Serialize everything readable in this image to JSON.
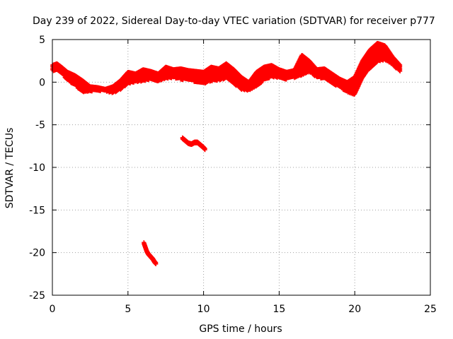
{
  "chart_data": {
    "type": "scatter",
    "title": "Day 239 of 2022, Sidereal Day-to-day VTEC variation (SDTVAR) for receiver p777",
    "xlabel": "GPS time / hours",
    "ylabel": "SDTVAR / TECUs",
    "xlim": [
      0,
      25
    ],
    "ylim": [
      -25,
      5
    ],
    "xticks": [
      0,
      5,
      10,
      15,
      20,
      25
    ],
    "yticks": [
      -25,
      -20,
      -15,
      -10,
      -5,
      0,
      5
    ],
    "grid": true,
    "marker": "+",
    "colors": {
      "series": "#ff0000",
      "grid": "#a0a0a0",
      "axis": "#000000"
    },
    "series": [
      {
        "name": "main band (upper edge)",
        "x": [
          0,
          0.3,
          0.6,
          1.0,
          1.5,
          2.0,
          2.5,
          3.0,
          3.5,
          4.0,
          4.5,
          5.0,
          5.5,
          6.0,
          6.5,
          7.0,
          7.5,
          8.0,
          8.5,
          9.0,
          9.5,
          10.0,
          10.5,
          11.0,
          11.5,
          12.0,
          12.5,
          13.0,
          13.5,
          14.0,
          14.5,
          15.0,
          15.5,
          16.0,
          16.5,
          17.0,
          17.5,
          18.0,
          18.5,
          19.0,
          19.5,
          20.0,
          20.5,
          21.0,
          21.5,
          22.0,
          22.5,
          23.0
        ],
        "y": [
          2.0,
          2.2,
          1.8,
          1.2,
          0.8,
          0.2,
          -0.5,
          -0.6,
          -0.8,
          -0.5,
          0.2,
          1.2,
          1.0,
          1.5,
          1.3,
          1.0,
          1.8,
          1.5,
          1.6,
          1.4,
          1.3,
          1.2,
          1.8,
          1.6,
          2.2,
          1.5,
          0.6,
          0.0,
          1.2,
          1.8,
          2.0,
          1.5,
          1.2,
          1.4,
          3.2,
          2.5,
          1.5,
          1.6,
          1.0,
          0.4,
          0.0,
          0.6,
          2.5,
          3.8,
          4.6,
          4.3,
          3.0,
          2.0
        ]
      },
      {
        "name": "main band (lower edge)",
        "x": [
          0,
          0.3,
          0.6,
          1.0,
          1.5,
          2.0,
          2.5,
          3.0,
          3.5,
          4.0,
          4.5,
          5.0,
          5.5,
          6.0,
          6.5,
          7.0,
          7.5,
          8.0,
          8.5,
          9.0,
          9.5,
          10.0,
          10.5,
          11.0,
          11.5,
          12.0,
          12.5,
          13.0,
          13.5,
          14.0,
          14.5,
          15.0,
          15.5,
          16.0,
          16.5,
          17.0,
          17.5,
          18.0,
          18.5,
          19.0,
          19.5,
          20.0,
          20.5,
          21.0,
          21.5,
          22.0,
          22.5,
          23.0
        ],
        "y": [
          1.3,
          1.4,
          1.0,
          0.2,
          -0.4,
          -1.2,
          -1.1,
          -1.0,
          -1.1,
          -1.3,
          -0.9,
          -0.2,
          0.0,
          0.1,
          0.3,
          0.1,
          0.4,
          0.5,
          0.3,
          0.2,
          0.0,
          -0.2,
          0.1,
          0.2,
          0.4,
          -0.2,
          -0.9,
          -1.0,
          -0.5,
          0.2,
          0.6,
          0.5,
          0.3,
          0.5,
          0.8,
          1.2,
          0.5,
          0.4,
          -0.2,
          -0.6,
          -1.2,
          -1.5,
          0.5,
          1.6,
          2.4,
          2.6,
          2.0,
          1.2
        ]
      },
      {
        "name": "isolated arc near 9 h",
        "x": [
          8.6,
          8.8,
          9.0,
          9.2,
          9.4,
          9.6,
          9.8,
          10.0,
          10.1
        ],
        "y": [
          -6.5,
          -6.8,
          -7.1,
          -7.2,
          -7.0,
          -7.0,
          -7.3,
          -7.6,
          -7.8
        ]
      },
      {
        "name": "isolated arc near 6 h",
        "x": [
          6.05,
          6.15,
          6.25,
          6.35,
          6.45,
          6.55,
          6.65,
          6.75,
          6.85
        ],
        "y": [
          -18.8,
          -19.3,
          -19.8,
          -20.1,
          -20.3,
          -20.5,
          -20.7,
          -21.0,
          -21.2
        ]
      }
    ]
  }
}
